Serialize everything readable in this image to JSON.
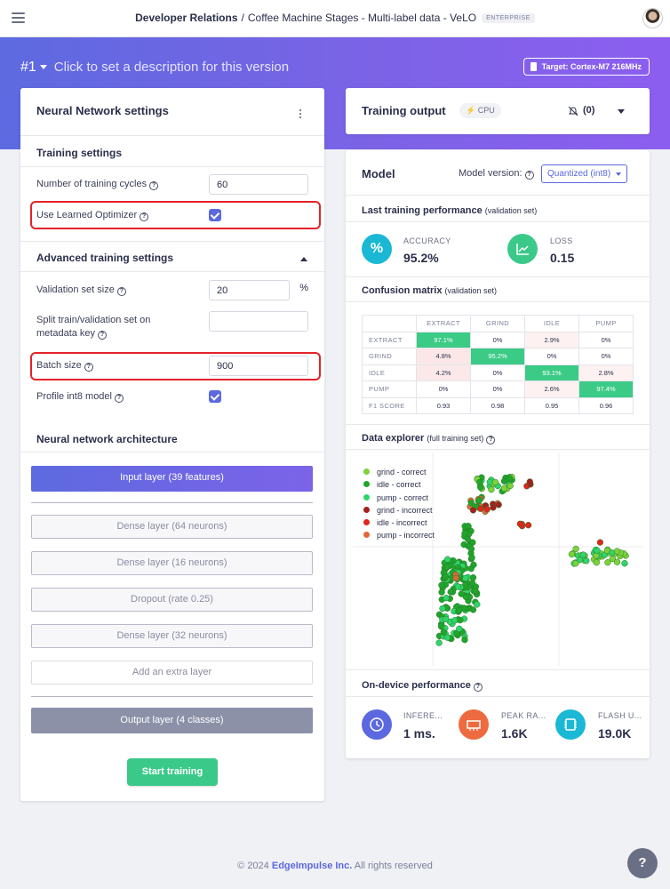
{
  "topbar": {
    "org": "Developer Relations",
    "separator": "/",
    "project": "Coffee Machine Stages - Multi-label data - VeLO",
    "badge": "ENTERPRISE"
  },
  "version": {
    "number": "#1",
    "description": "Click to set a description for this version",
    "target": "Target: Cortex-M7 216MHz"
  },
  "nn_settings": {
    "title": "Neural Network settings",
    "training_settings": "Training settings",
    "cycles_label": "Number of training cycles",
    "cycles_value": "60",
    "optimizer_label": "Use Learned Optimizer",
    "optimizer_checked": true,
    "advanced_title": "Advanced training settings",
    "validation_label": "Validation set size",
    "validation_value": "20",
    "validation_unit": "%",
    "split_label": "Split train/validation set on metadata key",
    "split_value": "",
    "batch_label": "Batch size",
    "batch_value": "900",
    "profile_label": "Profile int8 model",
    "profile_checked": true,
    "arch_title": "Neural network architecture",
    "layers": {
      "input": "Input layer (39 features)",
      "dense1": "Dense layer (64 neurons)",
      "dense2": "Dense layer (16 neurons)",
      "dropout": "Dropout (rate 0.25)",
      "dense3": "Dense layer (32 neurons)",
      "add": "Add an extra layer",
      "output": "Output layer (4 classes)"
    },
    "start_button": "Start training"
  },
  "training_output": {
    "title": "Training output",
    "cpu": "CPU",
    "notification_count": "(0)"
  },
  "model": {
    "title": "Model",
    "version_label": "Model version:",
    "version_value": "Quantized (int8)",
    "last_perf_title": "Last training performance",
    "last_perf_sub": "(validation set)",
    "accuracy_label": "ACCURACY",
    "accuracy_value": "95.2%",
    "loss_label": "LOSS",
    "loss_value": "0.15",
    "confusion_title": "Confusion matrix",
    "confusion_sub": "(validation set)",
    "confusion": {
      "columns": [
        "EXTRACT",
        "GRIND",
        "IDLE",
        "PUMP"
      ],
      "rows": [
        {
          "label": "EXTRACT",
          "cells": [
            "97.1%",
            "0%",
            "2.9%",
            "0%"
          ]
        },
        {
          "label": "GRIND",
          "cells": [
            "4.8%",
            "95.2%",
            "0%",
            "0%"
          ]
        },
        {
          "label": "IDLE",
          "cells": [
            "4.2%",
            "0%",
            "93.1%",
            "2.8%"
          ]
        },
        {
          "label": "PUMP",
          "cells": [
            "0%",
            "0%",
            "2.6%",
            "97.4%"
          ]
        },
        {
          "label": "F1 SCORE",
          "cells": [
            "0.93",
            "0.98",
            "0.95",
            "0.96"
          ]
        }
      ]
    },
    "explorer_title": "Data explorer",
    "explorer_sub": "(full training set)",
    "legend": [
      {
        "label": "grind - correct",
        "color": "#7cd23a"
      },
      {
        "label": "idle - correct",
        "color": "#1fa52b"
      },
      {
        "label": "pump - correct",
        "color": "#2fd46a"
      },
      {
        "label": "grind - incorrect",
        "color": "#a51f1f"
      },
      {
        "label": "idle - incorrect",
        "color": "#e0251d"
      },
      {
        "label": "pump - incorrect",
        "color": "#e0663a"
      }
    ],
    "ondevice_title": "On-device performance",
    "inference_label": "INFERE...",
    "inference_value": "1 ms.",
    "ram_label": "PEAK RA...",
    "ram_value": "1.6K",
    "flash_label": "FLASH U...",
    "flash_value": "19.0K"
  },
  "footer": {
    "year": "© 2024",
    "brand": "EdgeImpulse Inc.",
    "rights": "All rights reserved"
  },
  "help": "?"
}
